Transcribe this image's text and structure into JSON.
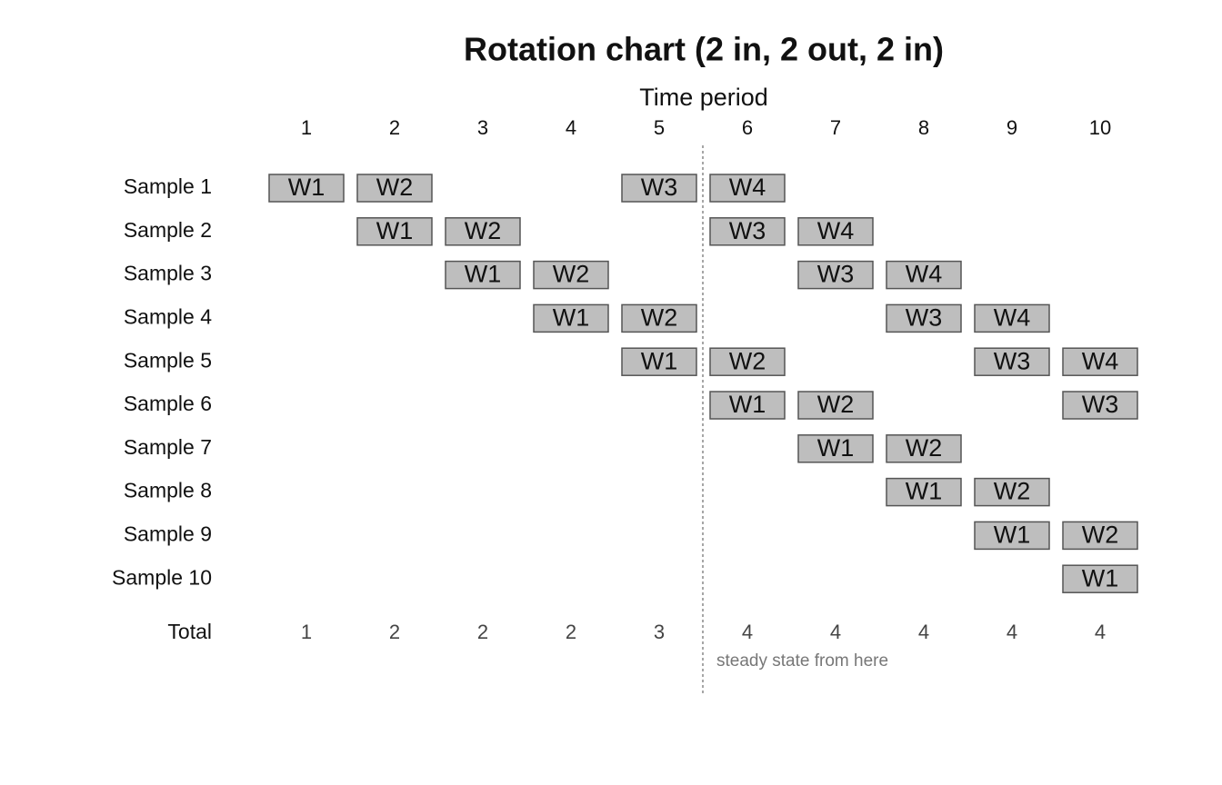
{
  "title": "Rotation chart (2 in, 2 out, 2 in)",
  "axis_label": "Time period",
  "periods": [
    "1",
    "2",
    "3",
    "4",
    "5",
    "6",
    "7",
    "8",
    "9",
    "10"
  ],
  "rows": [
    {
      "label": "Sample 1",
      "cells": [
        "W1",
        "W2",
        null,
        null,
        "W3",
        "W4",
        null,
        null,
        null,
        null
      ]
    },
    {
      "label": "Sample 2",
      "cells": [
        null,
        "W1",
        "W2",
        null,
        null,
        "W3",
        "W4",
        null,
        null,
        null
      ]
    },
    {
      "label": "Sample 3",
      "cells": [
        null,
        null,
        "W1",
        "W2",
        null,
        null,
        "W3",
        "W4",
        null,
        null
      ]
    },
    {
      "label": "Sample 4",
      "cells": [
        null,
        null,
        null,
        "W1",
        "W2",
        null,
        null,
        "W3",
        "W4",
        null
      ]
    },
    {
      "label": "Sample 5",
      "cells": [
        null,
        null,
        null,
        null,
        "W1",
        "W2",
        null,
        null,
        "W3",
        "W4"
      ]
    },
    {
      "label": "Sample 6",
      "cells": [
        null,
        null,
        null,
        null,
        null,
        "W1",
        "W2",
        null,
        null,
        "W3"
      ]
    },
    {
      "label": "Sample 7",
      "cells": [
        null,
        null,
        null,
        null,
        null,
        null,
        "W1",
        "W2",
        null,
        null
      ]
    },
    {
      "label": "Sample 8",
      "cells": [
        null,
        null,
        null,
        null,
        null,
        null,
        null,
        "W1",
        "W2",
        null
      ]
    },
    {
      "label": "Sample 9",
      "cells": [
        null,
        null,
        null,
        null,
        null,
        null,
        null,
        null,
        "W1",
        "W2"
      ]
    },
    {
      "label": "Sample 10",
      "cells": [
        null,
        null,
        null,
        null,
        null,
        null,
        null,
        null,
        null,
        "W1"
      ]
    }
  ],
  "total": {
    "label": "Total",
    "values": [
      "1",
      "2",
      "2",
      "2",
      "3",
      "4",
      "4",
      "4",
      "4",
      "4"
    ]
  },
  "annotation": "steady state from here"
}
